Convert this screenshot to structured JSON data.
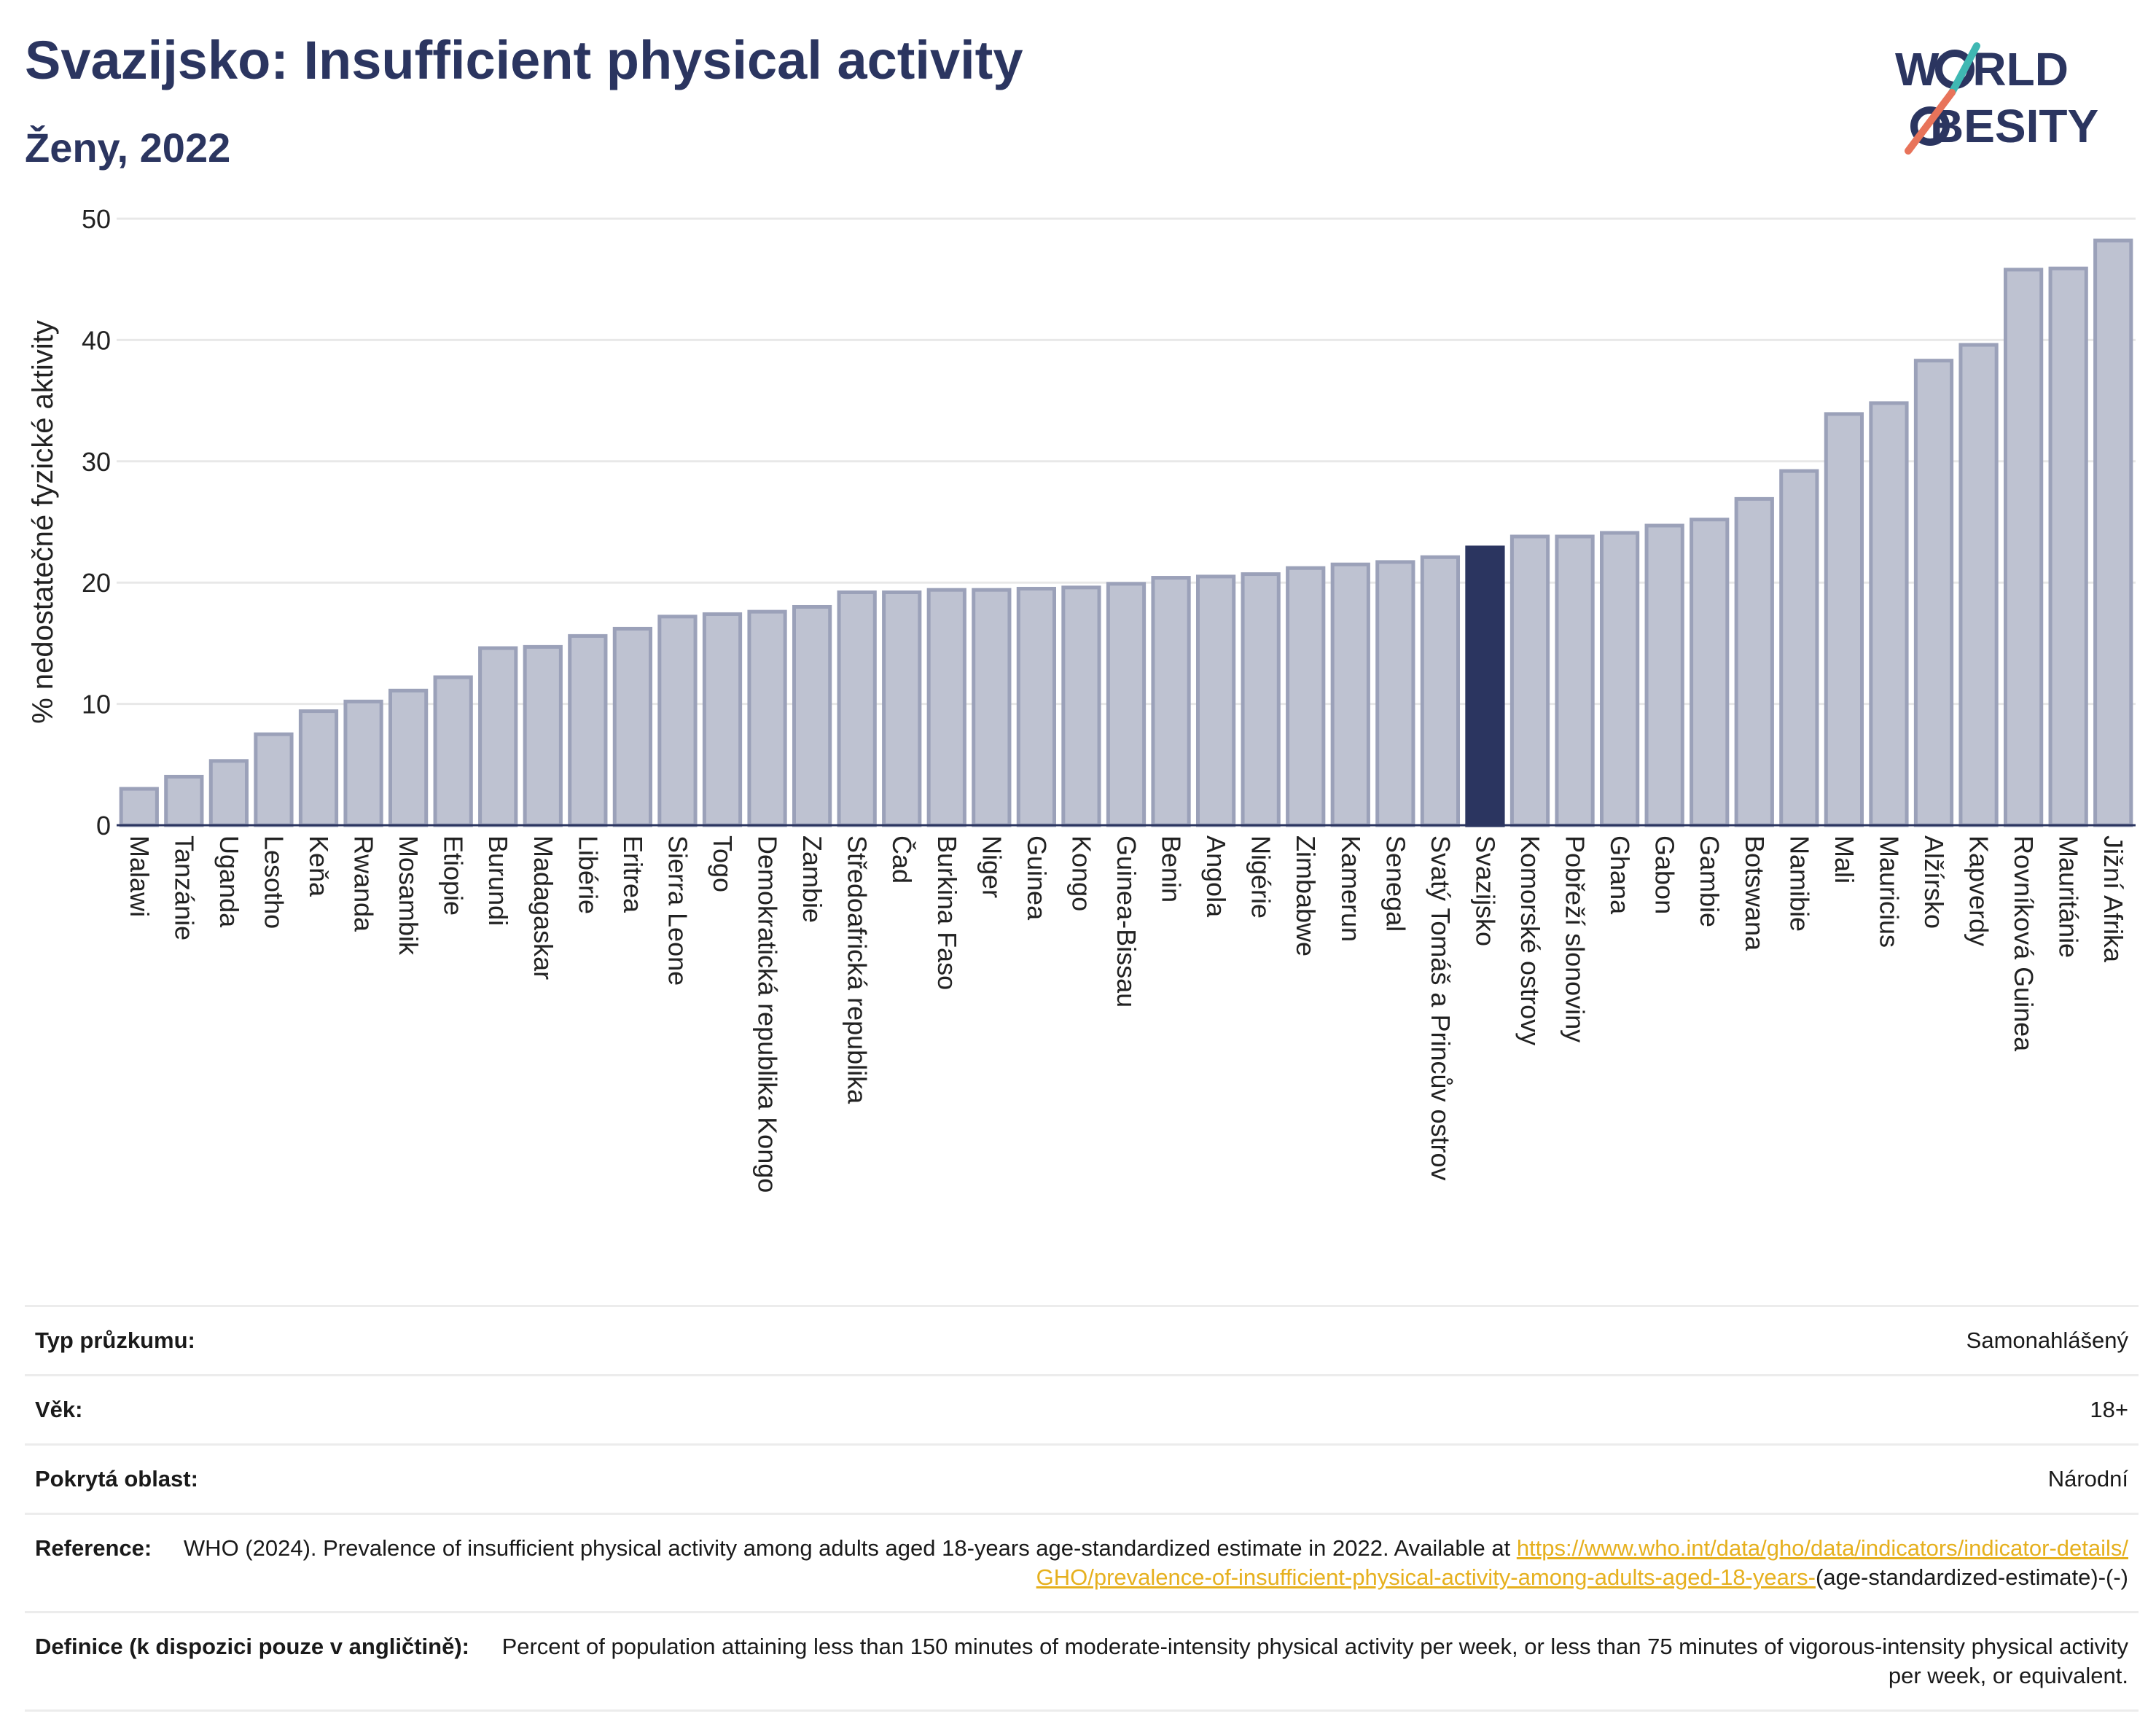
{
  "header": {
    "title": "Svazijsko: Insufficient physical activity",
    "subtitle": "Ženy, 2022"
  },
  "logo": {
    "line1_a": "W",
    "line1_b": "RLD",
    "line2_a": "",
    "line2_b": "BESITY"
  },
  "colors": {
    "bar": "#bec2d1",
    "bar_stroke": "#9ba1b9",
    "highlight": "#2b3560",
    "title": "#2b3560",
    "link": "#e6b01e"
  },
  "chart_data": {
    "type": "bar",
    "ylabel": "% nedostatečné fyzické aktivity",
    "ylim": [
      0,
      50
    ],
    "yticks": [
      0,
      10,
      20,
      30,
      40,
      50
    ],
    "grid": true,
    "highlight": "Svazijsko",
    "categories": [
      "Malawi",
      "Tanzánie",
      "Uganda",
      "Lesotho",
      "Keňa",
      "Rwanda",
      "Mosambik",
      "Etiopie",
      "Burundi",
      "Madagaskar",
      "Libérie",
      "Eritrea",
      "Sierra Leone",
      "Togo",
      "Demokratická republika Kongo",
      "Zambie",
      "Středoafrická republika",
      "Čad",
      "Burkina Faso",
      "Niger",
      "Guinea",
      "Kongo",
      "Guinea-Bissau",
      "Benin",
      "Angola",
      "Nigérie",
      "Zimbabwe",
      "Kamerun",
      "Senegal",
      "Svatý Tomáš a Princův ostrov",
      "Svazijsko",
      "Komorské ostrovy",
      "Pobřeží slonoviny",
      "Ghana",
      "Gabon",
      "Gambie",
      "Botswana",
      "Namibie",
      "Mali",
      "Mauricius",
      "Alžírsko",
      "Kapverdy",
      "Rovníková Guinea",
      "Mauritánie",
      "Jižní Afrika"
    ],
    "values": [
      3.0,
      4.0,
      5.3,
      7.5,
      9.4,
      10.2,
      11.1,
      12.2,
      14.6,
      14.7,
      15.6,
      16.2,
      17.2,
      17.4,
      17.6,
      18.0,
      19.2,
      19.2,
      19.4,
      19.4,
      19.5,
      19.6,
      19.9,
      20.4,
      20.5,
      20.7,
      21.2,
      21.5,
      21.7,
      22.1,
      22.9,
      23.8,
      23.8,
      24.1,
      24.7,
      25.2,
      26.9,
      29.2,
      33.9,
      34.8,
      38.3,
      39.6,
      45.8,
      45.9,
      48.2
    ]
  },
  "meta": [
    {
      "label": "Typ průzkumu:",
      "value": "Samonahlášený"
    },
    {
      "label": "Věk:",
      "value": "18+"
    },
    {
      "label": "Pokrytá oblast:",
      "value": "Národní"
    },
    {
      "label": "Reference:",
      "value": "WHO (2024). Prevalence of insufficient physical activity among adults aged 18-years age-standardized estimate in 2022. Available at",
      "link": "https://www.who.int/data/gho/data/indicators/indicator-details/GHO/prevalence-of-insufficient-physical-activity-among-adults-aged-18-years-",
      "suffix": "(age-standardized-estimate)-(-)"
    },
    {
      "label": "Definice (k dispozici pouze v angličtině):",
      "value": "Percent of population attaining less than 150 minutes of moderate-intensity physical activity per week, or less than 75 minutes of vigorous-intensity physical activity per week, or equivalent."
    }
  ]
}
